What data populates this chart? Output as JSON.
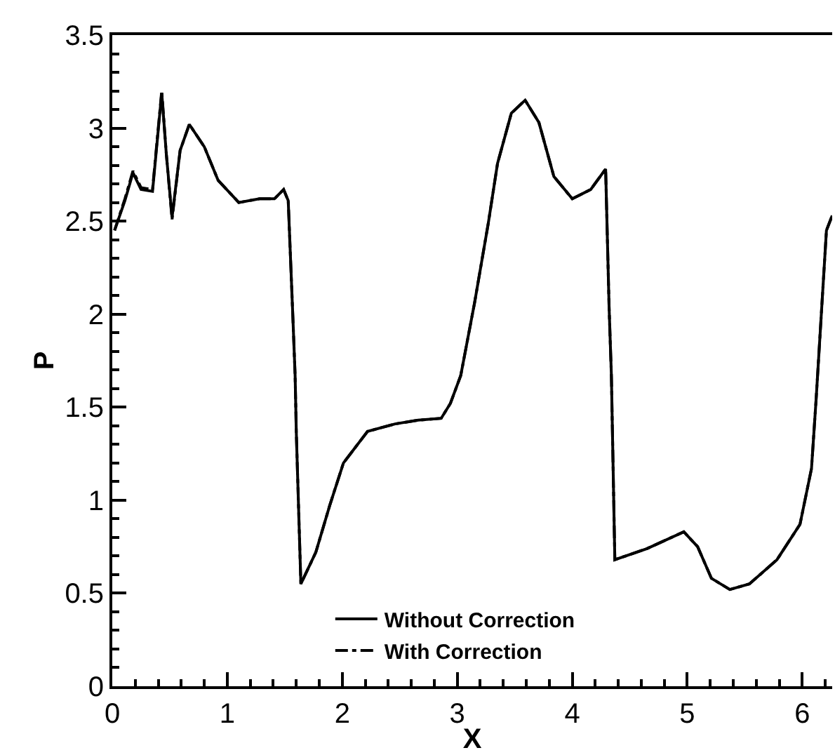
{
  "chart_data": {
    "type": "line",
    "xlabel": "X",
    "ylabel": "P",
    "xlim": [
      0,
      6.26
    ],
    "ylim": [
      0,
      3.5
    ],
    "xticks": [
      0,
      1,
      2,
      3,
      4,
      5,
      6,
      {
        "value": 0.2,
        "label": null
      },
      {
        "value": 0.4,
        "label": null
      },
      {
        "value": 0.6,
        "label": null
      },
      {
        "value": 0.8,
        "label": null
      },
      {
        "value": 1.2,
        "label": null
      },
      {
        "value": 1.4,
        "label": null
      },
      {
        "value": 1.6,
        "label": null
      },
      {
        "value": 1.8,
        "label": null
      },
      {
        "value": 2.2,
        "label": null
      },
      {
        "value": 2.4,
        "label": null
      },
      {
        "value": 2.6,
        "label": null
      },
      {
        "value": 2.8,
        "label": null
      },
      {
        "value": 3.2,
        "label": null
      },
      {
        "value": 3.4,
        "label": null
      },
      {
        "value": 3.6,
        "label": null
      },
      {
        "value": 3.8,
        "label": null
      },
      {
        "value": 4.2,
        "label": null
      },
      {
        "value": 4.4,
        "label": null
      },
      {
        "value": 4.6,
        "label": null
      },
      {
        "value": 4.8,
        "label": null
      },
      {
        "value": 5.2,
        "label": null
      },
      {
        "value": 5.4,
        "label": null
      },
      {
        "value": 5.6,
        "label": null
      },
      {
        "value": 5.8,
        "label": null
      },
      {
        "value": 6.2,
        "label": null
      }
    ],
    "yticks": [
      0,
      0.5,
      1,
      1.5,
      2,
      2.5,
      3,
      3.5,
      {
        "value": 0.1,
        "label": null
      },
      {
        "value": 0.2,
        "label": null
      },
      {
        "value": 0.3,
        "label": null
      },
      {
        "value": 0.4,
        "label": null
      },
      {
        "value": 0.6,
        "label": null
      },
      {
        "value": 0.7,
        "label": null
      },
      {
        "value": 0.8,
        "label": null
      },
      {
        "value": 0.9,
        "label": null
      },
      {
        "value": 1.1,
        "label": null
      },
      {
        "value": 1.2,
        "label": null
      },
      {
        "value": 1.3,
        "label": null
      },
      {
        "value": 1.4,
        "label": null
      },
      {
        "value": 1.6,
        "label": null
      },
      {
        "value": 1.7,
        "label": null
      },
      {
        "value": 1.8,
        "label": null
      },
      {
        "value": 1.9,
        "label": null
      },
      {
        "value": 2.1,
        "label": null
      },
      {
        "value": 2.2,
        "label": null
      },
      {
        "value": 2.3,
        "label": null
      },
      {
        "value": 2.4,
        "label": null
      },
      {
        "value": 2.6,
        "label": null
      },
      {
        "value": 2.7,
        "label": null
      },
      {
        "value": 2.8,
        "label": null
      },
      {
        "value": 2.9,
        "label": null
      },
      {
        "value": 3.1,
        "label": null
      },
      {
        "value": 3.2,
        "label": null
      },
      {
        "value": 3.3,
        "label": null
      },
      {
        "value": 3.4,
        "label": null
      }
    ],
    "x": [
      0.02,
      0.11,
      0.18,
      0.25,
      0.35,
      0.43,
      0.47,
      0.52,
      0.59,
      0.67,
      0.8,
      0.92,
      1.1,
      1.28,
      1.41,
      1.49,
      1.53,
      1.57,
      1.59,
      1.6,
      1.64,
      1.77,
      1.89,
      2.01,
      2.22,
      2.46,
      2.66,
      2.86,
      2.94,
      3.03,
      3.15,
      3.27,
      3.35,
      3.47,
      3.59,
      3.71,
      3.84,
      4.0,
      4.16,
      4.29,
      4.32,
      4.34,
      4.37,
      4.65,
      4.97,
      5.09,
      5.21,
      5.37,
      5.54,
      5.78,
      5.98,
      6.08,
      6.12,
      6.21,
      6.26
    ],
    "series": [
      {
        "name": "Without Correction",
        "color": "#000000",
        "line_style": "solid",
        "values": [
          2.45,
          2.61,
          2.76,
          2.67,
          2.66,
          3.19,
          2.86,
          2.52,
          2.88,
          3.02,
          2.9,
          2.72,
          2.6,
          2.62,
          2.62,
          2.67,
          2.61,
          1.99,
          1.67,
          1.37,
          0.55,
          0.72,
          0.97,
          1.2,
          1.37,
          1.41,
          1.43,
          1.44,
          1.52,
          1.67,
          2.06,
          2.49,
          2.81,
          3.08,
          3.15,
          3.03,
          2.74,
          2.62,
          2.67,
          2.78,
          2.04,
          1.67,
          0.68,
          0.74,
          0.83,
          0.75,
          0.58,
          0.52,
          0.55,
          0.68,
          0.87,
          1.17,
          1.54,
          2.45,
          2.53
        ]
      },
      {
        "name": "With Correction",
        "color": "#000000",
        "line_style": "dashdot",
        "values": [
          2.45,
          2.62,
          2.77,
          2.68,
          2.67,
          3.2,
          2.86,
          2.51,
          2.88,
          3.02,
          2.9,
          2.72,
          2.6,
          2.62,
          2.62,
          2.67,
          2.61,
          1.99,
          1.67,
          1.37,
          0.55,
          0.72,
          0.97,
          1.2,
          1.37,
          1.41,
          1.43,
          1.44,
          1.52,
          1.67,
          2.06,
          2.49,
          2.81,
          3.08,
          3.15,
          3.03,
          2.74,
          2.62,
          2.67,
          2.78,
          2.04,
          1.67,
          0.68,
          0.74,
          0.83,
          0.75,
          0.58,
          0.52,
          0.55,
          0.68,
          0.87,
          1.17,
          1.54,
          2.45,
          2.53
        ]
      }
    ],
    "legend": "bottom"
  }
}
